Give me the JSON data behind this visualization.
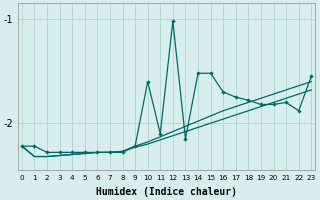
{
  "xlabel": "Humidex (Indice chaleur)",
  "background_color": "#d8eeee",
  "grid_color": "#b8d8d8",
  "line_color": "#006868",
  "x": [
    0,
    1,
    2,
    3,
    4,
    5,
    6,
    7,
    8,
    9,
    10,
    11,
    12,
    13,
    14,
    15,
    16,
    17,
    18,
    19,
    20,
    21,
    22,
    23
  ],
  "line1": [
    -2.22,
    -2.22,
    -2.28,
    -2.28,
    -2.28,
    -2.28,
    -2.28,
    -2.28,
    -2.28,
    -2.22,
    -1.6,
    -2.1,
    -1.02,
    -2.15,
    -1.52,
    -1.52,
    -1.7,
    -1.75,
    -1.78,
    -1.82,
    -1.82,
    -1.8,
    -1.88,
    -1.55
  ],
  "line2": [
    -2.22,
    -2.32,
    -2.32,
    -2.31,
    -2.3,
    -2.29,
    -2.28,
    -2.28,
    -2.27,
    -2.22,
    -2.18,
    -2.13,
    -2.08,
    -2.03,
    -1.98,
    -1.93,
    -1.88,
    -1.84,
    -1.8,
    -1.76,
    -1.72,
    -1.68,
    -1.64,
    -1.6
  ],
  "line3": [
    -2.22,
    -2.32,
    -2.32,
    -2.31,
    -2.3,
    -2.29,
    -2.28,
    -2.28,
    -2.27,
    -2.23,
    -2.2,
    -2.16,
    -2.12,
    -2.08,
    -2.04,
    -2.0,
    -1.96,
    -1.92,
    -1.88,
    -1.84,
    -1.8,
    -1.76,
    -1.72,
    -1.68
  ],
  "ylim": [
    -2.45,
    -0.85
  ],
  "yticks": [
    -2,
    -1
  ],
  "xlim": [
    -0.3,
    23.3
  ]
}
